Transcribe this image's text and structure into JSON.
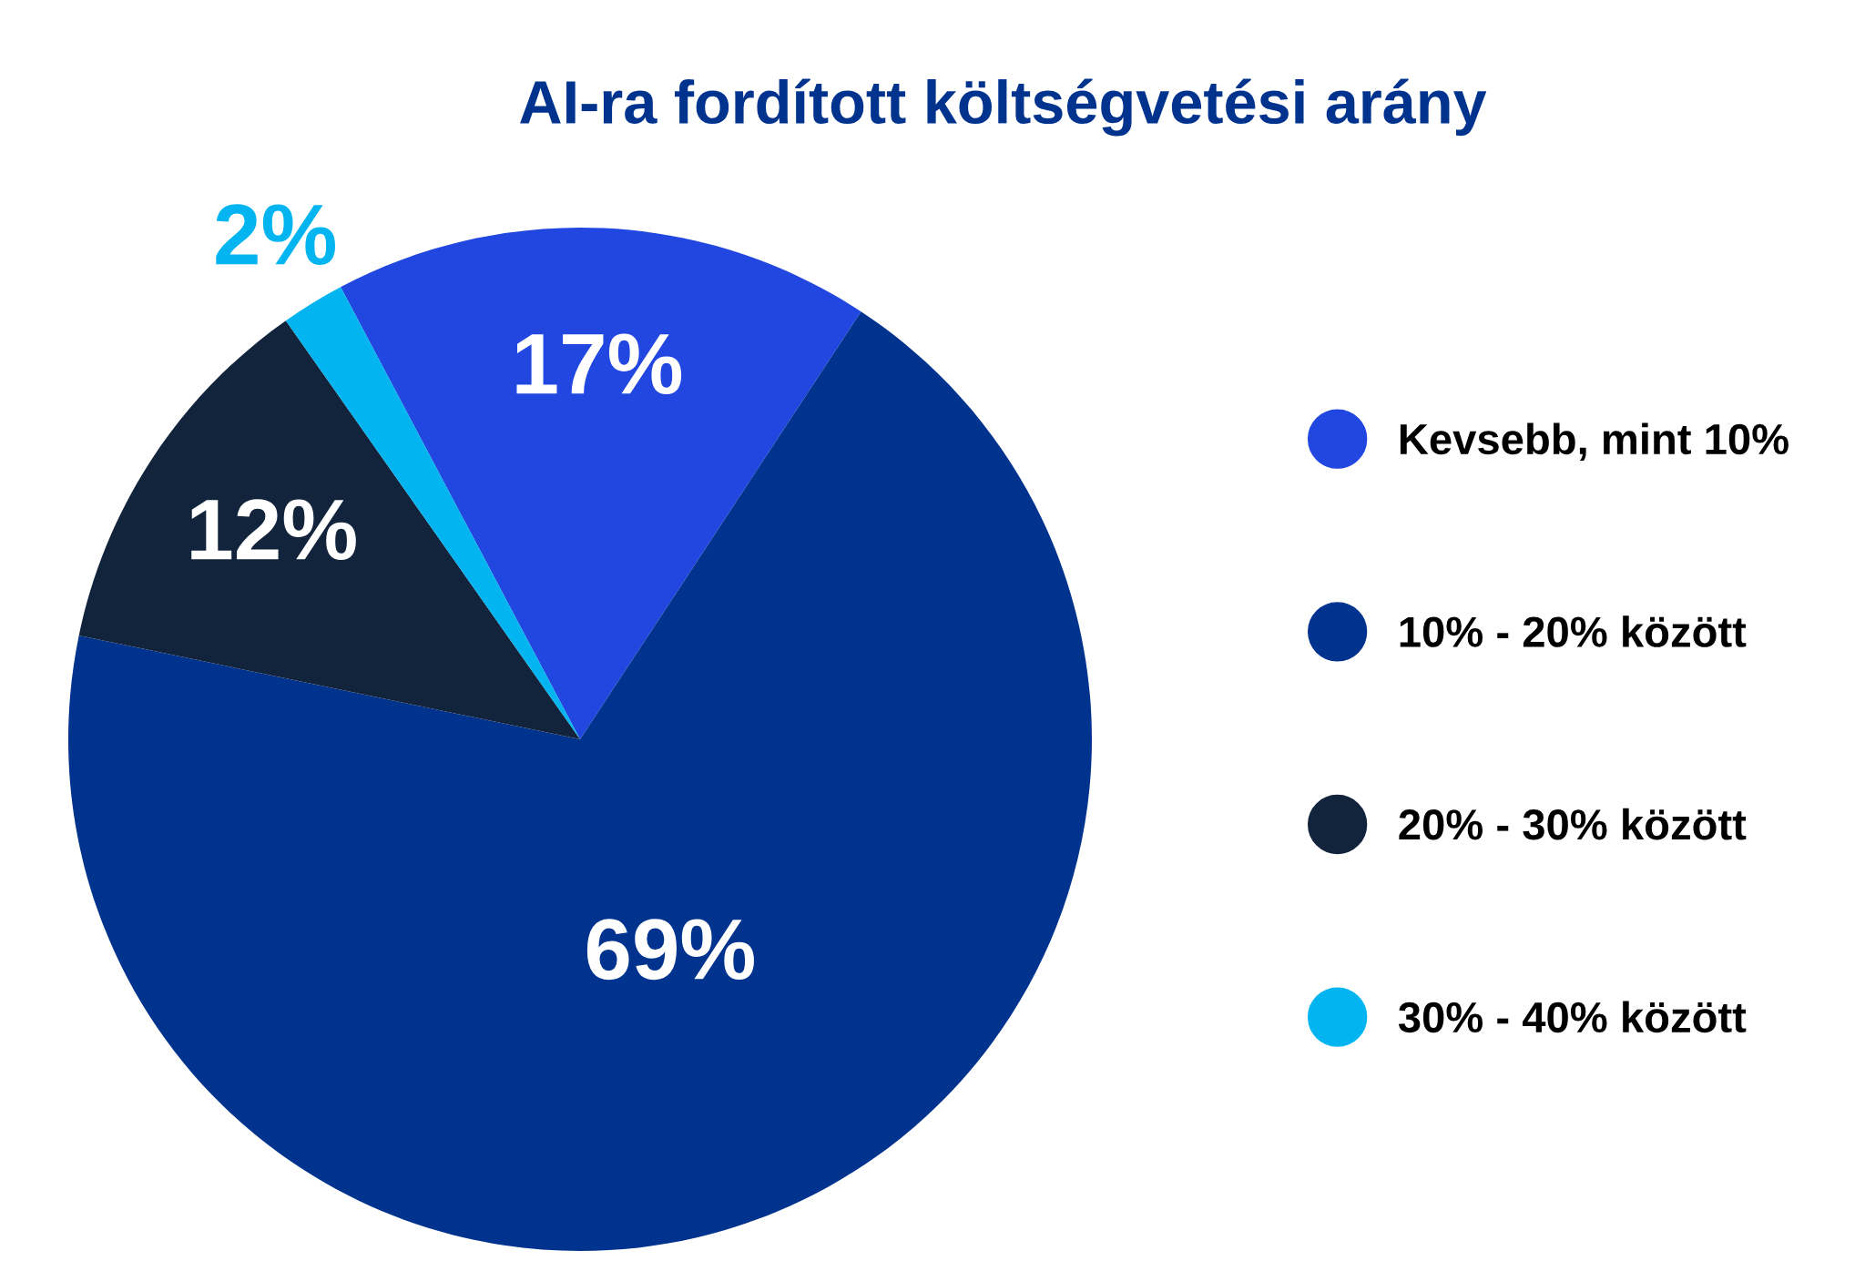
{
  "chart_data": {
    "type": "pie",
    "title": "AI-ra fordított költségvetési arány",
    "categories": [
      "Kevsebb, mint 10%",
      "10% - 20% között",
      "20% - 30% között",
      "30% - 40% között"
    ],
    "values": [
      17,
      69,
      12,
      2
    ],
    "colors": [
      "#2147e0",
      "#00338e",
      "#12233c",
      "#02b5f0"
    ],
    "value_labels": [
      "17%",
      "69%",
      "12%",
      "2%"
    ],
    "legend": "right"
  }
}
